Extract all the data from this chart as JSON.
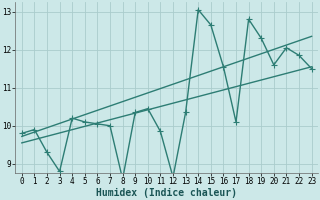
{
  "xlabel": "Humidex (Indice chaleur)",
  "ylabel": "",
  "bg_color": "#cce8e8",
  "line_color": "#2d7d74",
  "grid_color": "#aacccc",
  "xlim": [
    -0.5,
    23.5
  ],
  "ylim": [
    8.75,
    13.25
  ],
  "xticks": [
    0,
    1,
    2,
    3,
    4,
    5,
    6,
    7,
    8,
    9,
    10,
    11,
    12,
    13,
    14,
    15,
    16,
    17,
    18,
    19,
    20,
    21,
    22,
    23
  ],
  "yticks": [
    9,
    10,
    11,
    12,
    13
  ],
  "data_x": [
    0,
    1,
    2,
    3,
    4,
    5,
    6,
    7,
    8,
    9,
    10,
    11,
    12,
    13,
    14,
    15,
    16,
    17,
    18,
    19,
    20,
    21,
    22,
    23
  ],
  "data_y": [
    9.8,
    9.9,
    9.3,
    8.8,
    10.2,
    10.1,
    10.05,
    10.0,
    8.6,
    10.35,
    10.45,
    9.85,
    8.65,
    10.35,
    13.05,
    12.65,
    11.55,
    10.1,
    12.8,
    12.3,
    11.6,
    12.05,
    11.85,
    11.5
  ],
  "trend1_x": [
    0,
    23
  ],
  "trend1_y": [
    9.55,
    11.55
  ],
  "trend2_x": [
    0,
    23
  ],
  "trend2_y": [
    9.72,
    12.35
  ],
  "marker_size": 4,
  "line_width": 1.0,
  "tick_fontsize": 5.5,
  "label_fontsize": 7
}
